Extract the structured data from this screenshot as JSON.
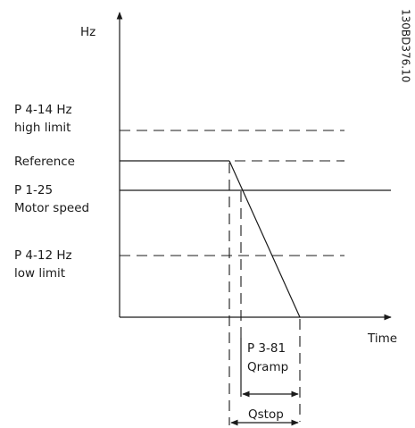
{
  "axis": {
    "y": "Hz",
    "x": "Time"
  },
  "levels": {
    "high_limit": {
      "param": "P 4-14 Hz",
      "label": "high limit"
    },
    "reference": {
      "label": "Reference"
    },
    "motor_speed": {
      "param": "P 1-25",
      "label": "Motor speed"
    },
    "low_limit": {
      "param": "P 4-12 Hz",
      "label": "low limit"
    }
  },
  "intervals": {
    "qramp": {
      "param": "P 3-81",
      "label": "Qramp"
    },
    "qstop": {
      "label": "Qstop"
    }
  },
  "figure_id": "130BD376.10"
}
